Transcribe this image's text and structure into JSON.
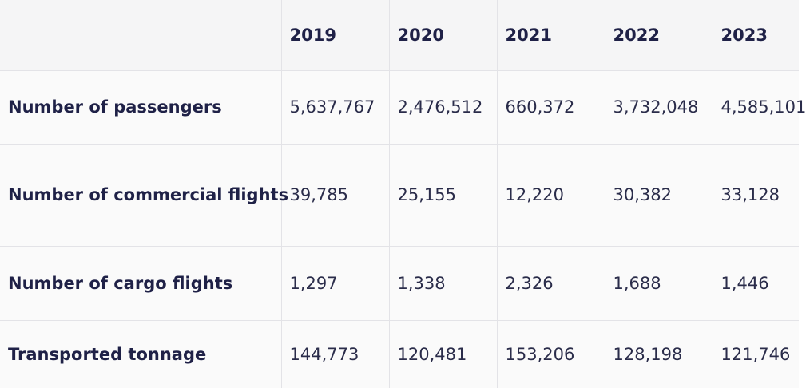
{
  "table": {
    "years": [
      "2019",
      "2020",
      "2021",
      "2022",
      "2023"
    ],
    "rows": [
      {
        "label": "Number of passengers",
        "values": [
          "5,637,767",
          "2,476,512",
          "660,372",
          "3,732,048",
          "4,585,101"
        ]
      },
      {
        "label": "Number of commercial flights",
        "values": [
          "39,785",
          "25,155",
          "12,220",
          "30,382",
          "33,128"
        ]
      },
      {
        "label": "Number of cargo flights",
        "values": [
          "1,297",
          "1,338",
          "2,326",
          "1,688",
          "1,446"
        ]
      },
      {
        "label": "Transported tonnage",
        "values": [
          "144,773",
          "120,481",
          "153,206",
          "128,198",
          "121,746"
        ]
      }
    ]
  }
}
